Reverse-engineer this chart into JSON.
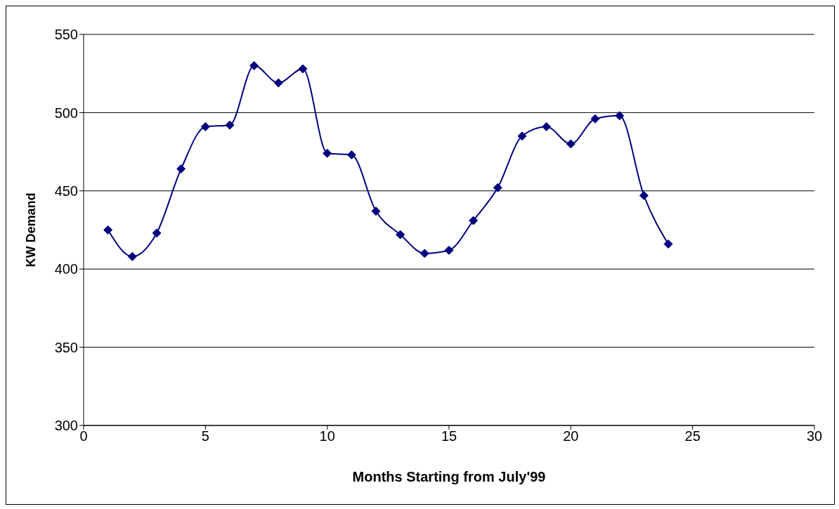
{
  "chart_data": {
    "type": "line",
    "xlabel": "Months Starting from July'99",
    "ylabel": "KW Demand",
    "x": [
      1,
      2,
      3,
      4,
      5,
      6,
      7,
      8,
      9,
      10,
      11,
      12,
      13,
      14,
      15,
      16,
      17,
      18,
      19,
      20,
      21,
      22,
      23,
      24
    ],
    "series": [
      {
        "color": "#000080",
        "values": [
          425,
          408,
          423,
          464,
          491,
          492,
          530,
          519,
          528,
          474,
          473,
          437,
          422,
          410,
          412,
          431,
          452,
          485,
          491,
          480,
          496,
          498,
          447,
          416
        ]
      }
    ],
    "xlim": [
      0,
      30
    ],
    "xticks": [
      0,
      5,
      10,
      15,
      20,
      25,
      30
    ],
    "ylim": [
      300,
      550
    ],
    "yticks": [
      300,
      350,
      400,
      450,
      500,
      550
    ],
    "grid": "y",
    "legend": false,
    "marker": "diamond",
    "line_style": "solid"
  }
}
